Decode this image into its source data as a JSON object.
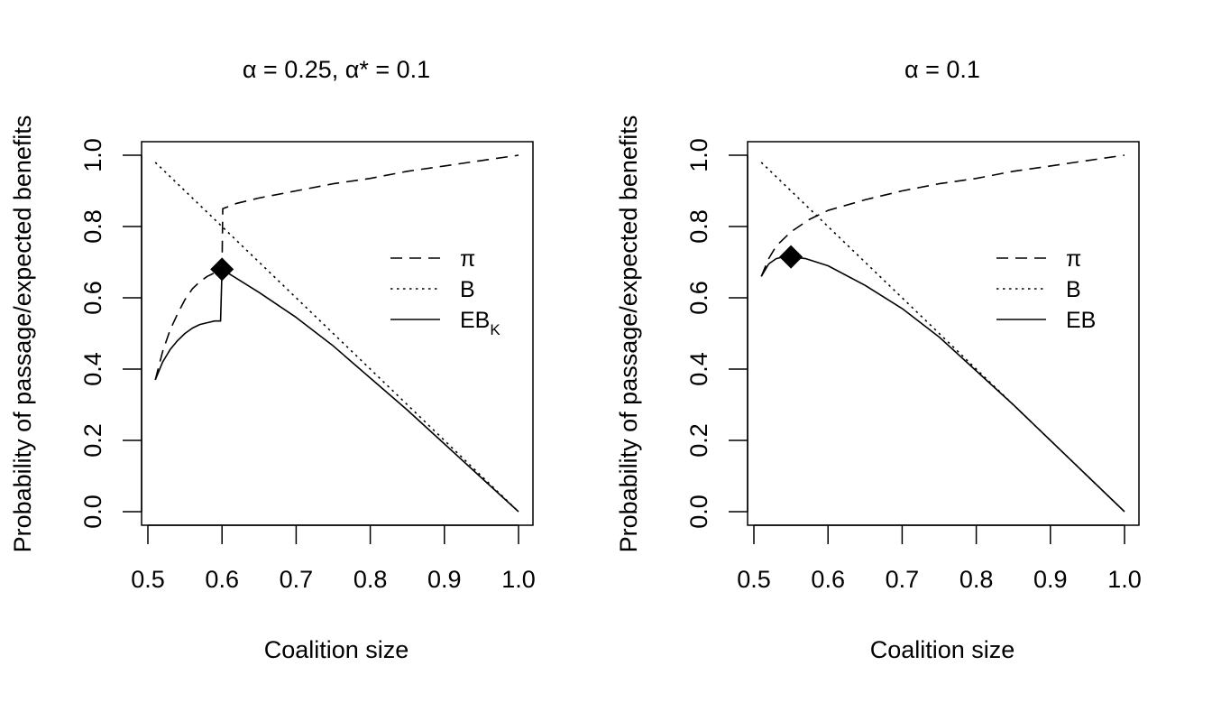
{
  "chart_data": [
    {
      "type": "line",
      "title": "α = 0.25, α* = 0.1",
      "xlabel": "Coalition size",
      "ylabel": "Probability of passage/expected benefits",
      "xlim": [
        0.5,
        1.0
      ],
      "ylim": [
        0.0,
        1.0
      ],
      "x_ticks": [
        "0.5",
        "0.6",
        "0.7",
        "0.8",
        "0.9",
        "1.0"
      ],
      "y_ticks": [
        "0.0",
        "0.2",
        "0.4",
        "0.6",
        "0.8",
        "1.0"
      ],
      "grid": false,
      "legend_position": "right",
      "series": [
        {
          "name": "π",
          "line_style": "dashed",
          "points": [
            [
              0.51,
              0.37
            ],
            [
              0.52,
              0.45
            ],
            [
              0.53,
              0.51
            ],
            [
              0.54,
              0.555
            ],
            [
              0.55,
              0.595
            ],
            [
              0.56,
              0.625
            ],
            [
              0.57,
              0.645
            ],
            [
              0.58,
              0.66
            ],
            [
              0.59,
              0.67
            ],
            [
              0.6,
              0.68
            ],
            [
              0.601,
              0.85
            ],
            [
              0.62,
              0.865
            ],
            [
              0.65,
              0.88
            ],
            [
              0.7,
              0.9
            ],
            [
              0.75,
              0.92
            ],
            [
              0.8,
              0.935
            ],
            [
              0.85,
              0.955
            ],
            [
              0.9,
              0.97
            ],
            [
              0.95,
              0.985
            ],
            [
              1.0,
              1.0
            ]
          ]
        },
        {
          "name": "B",
          "line_style": "dotted",
          "points": [
            [
              0.51,
              0.98
            ],
            [
              1.0,
              0.0
            ]
          ]
        },
        {
          "name": "EB",
          "name_subscript": "K",
          "line_style": "solid",
          "points": [
            [
              0.51,
              0.37
            ],
            [
              0.52,
              0.42
            ],
            [
              0.53,
              0.455
            ],
            [
              0.54,
              0.48
            ],
            [
              0.55,
              0.5
            ],
            [
              0.56,
              0.515
            ],
            [
              0.57,
              0.525
            ],
            [
              0.58,
              0.53
            ],
            [
              0.59,
              0.535
            ],
            [
              0.598,
              0.535
            ],
            [
              0.6,
              0.68
            ],
            [
              0.65,
              0.615
            ],
            [
              0.7,
              0.545
            ],
            [
              0.75,
              0.465
            ],
            [
              0.8,
              0.375
            ],
            [
              0.85,
              0.285
            ],
            [
              0.9,
              0.19
            ],
            [
              0.95,
              0.095
            ],
            [
              1.0,
              0.0
            ]
          ]
        }
      ],
      "marker": {
        "shape": "diamond",
        "x": 0.6,
        "y": 0.68
      }
    },
    {
      "type": "line",
      "title": "α = 0.1",
      "xlabel": "Coalition size",
      "ylabel": "Probability of passage/expected benefits",
      "xlim": [
        0.5,
        1.0
      ],
      "ylim": [
        0.0,
        1.0
      ],
      "x_ticks": [
        "0.5",
        "0.6",
        "0.7",
        "0.8",
        "0.9",
        "1.0"
      ],
      "y_ticks": [
        "0.0",
        "0.2",
        "0.4",
        "0.6",
        "0.8",
        "1.0"
      ],
      "grid": false,
      "legend_position": "right",
      "series": [
        {
          "name": "π",
          "line_style": "dashed",
          "points": [
            [
              0.51,
              0.66
            ],
            [
              0.52,
              0.71
            ],
            [
              0.53,
              0.745
            ],
            [
              0.55,
              0.785
            ],
            [
              0.575,
              0.82
            ],
            [
              0.6,
              0.845
            ],
            [
              0.65,
              0.875
            ],
            [
              0.7,
              0.9
            ],
            [
              0.75,
              0.92
            ],
            [
              0.8,
              0.935
            ],
            [
              0.85,
              0.955
            ],
            [
              0.9,
              0.97
            ],
            [
              0.95,
              0.985
            ],
            [
              1.0,
              1.0
            ]
          ]
        },
        {
          "name": "B",
          "line_style": "dotted",
          "points": [
            [
              0.51,
              0.98
            ],
            [
              1.0,
              0.0
            ]
          ]
        },
        {
          "name": "EB",
          "line_style": "solid",
          "points": [
            [
              0.51,
              0.66
            ],
            [
              0.52,
              0.695
            ],
            [
              0.53,
              0.71
            ],
            [
              0.54,
              0.715
            ],
            [
              0.55,
              0.715
            ],
            [
              0.57,
              0.71
            ],
            [
              0.6,
              0.69
            ],
            [
              0.65,
              0.635
            ],
            [
              0.7,
              0.57
            ],
            [
              0.75,
              0.49
            ],
            [
              0.8,
              0.395
            ],
            [
              0.85,
              0.3
            ],
            [
              0.9,
              0.2
            ],
            [
              0.95,
              0.1
            ],
            [
              1.0,
              0.0
            ]
          ]
        }
      ],
      "marker": {
        "shape": "diamond",
        "x": 0.55,
        "y": 0.715
      }
    }
  ]
}
